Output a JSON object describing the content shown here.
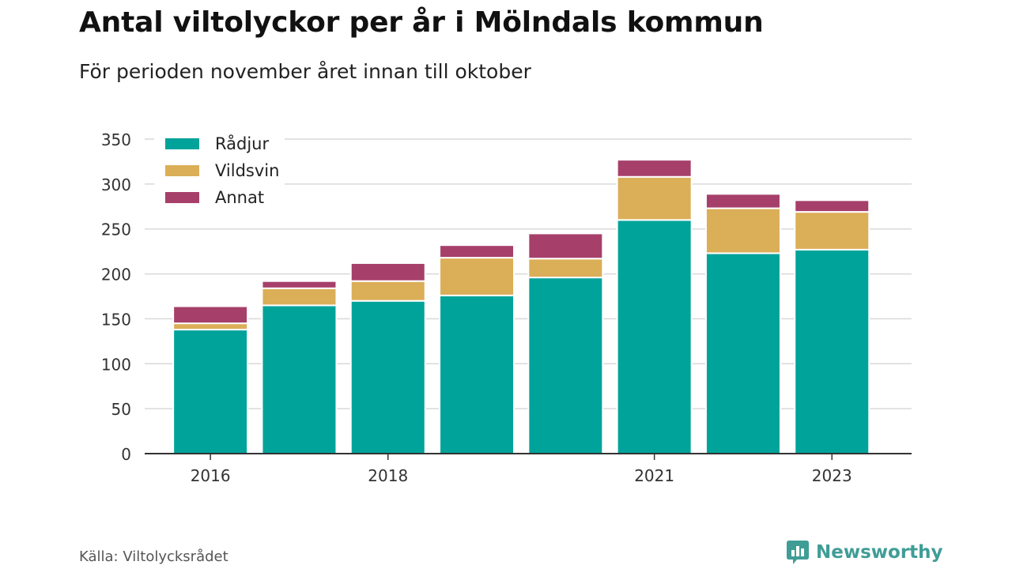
{
  "title": "Antal viltolyckor per år i Mölndals kommun",
  "subtitle": "För perioden november året innan till oktober",
  "source": "Källa: Viltolycksrådet",
  "brand": "Newsworthy",
  "colors": {
    "Rådjur": "#00a39a",
    "Vildsvin": "#dbae58",
    "Annat": "#a6406a",
    "grid": "#d9d9d9",
    "axis": "#333333",
    "brand": "#3f9d96"
  },
  "chart_data": {
    "type": "bar",
    "stacked": true,
    "title": "Antal viltolyckor per år i Mölndals kommun",
    "subtitle": "För perioden november året innan till oktober",
    "categories": [
      "2016",
      "2017",
      "2018",
      "2019",
      "2020",
      "2021",
      "2022",
      "2023"
    ],
    "x_tick_labels": [
      "2016",
      "2018",
      "2021",
      "2023"
    ],
    "series": [
      {
        "name": "Rådjur",
        "values": [
          138,
          165,
          170,
          176,
          196,
          260,
          223,
          227
        ]
      },
      {
        "name": "Vildsvin",
        "values": [
          7,
          19,
          22,
          42,
          21,
          48,
          50,
          42
        ]
      },
      {
        "name": "Annat",
        "values": [
          19,
          8,
          20,
          14,
          28,
          19,
          16,
          13
        ]
      }
    ],
    "ylim": [
      0,
      350
    ],
    "yticks": [
      0,
      50,
      100,
      150,
      200,
      250,
      300,
      350
    ],
    "xlabel": "",
    "ylabel": "",
    "grid": true,
    "legend": "top-left"
  }
}
